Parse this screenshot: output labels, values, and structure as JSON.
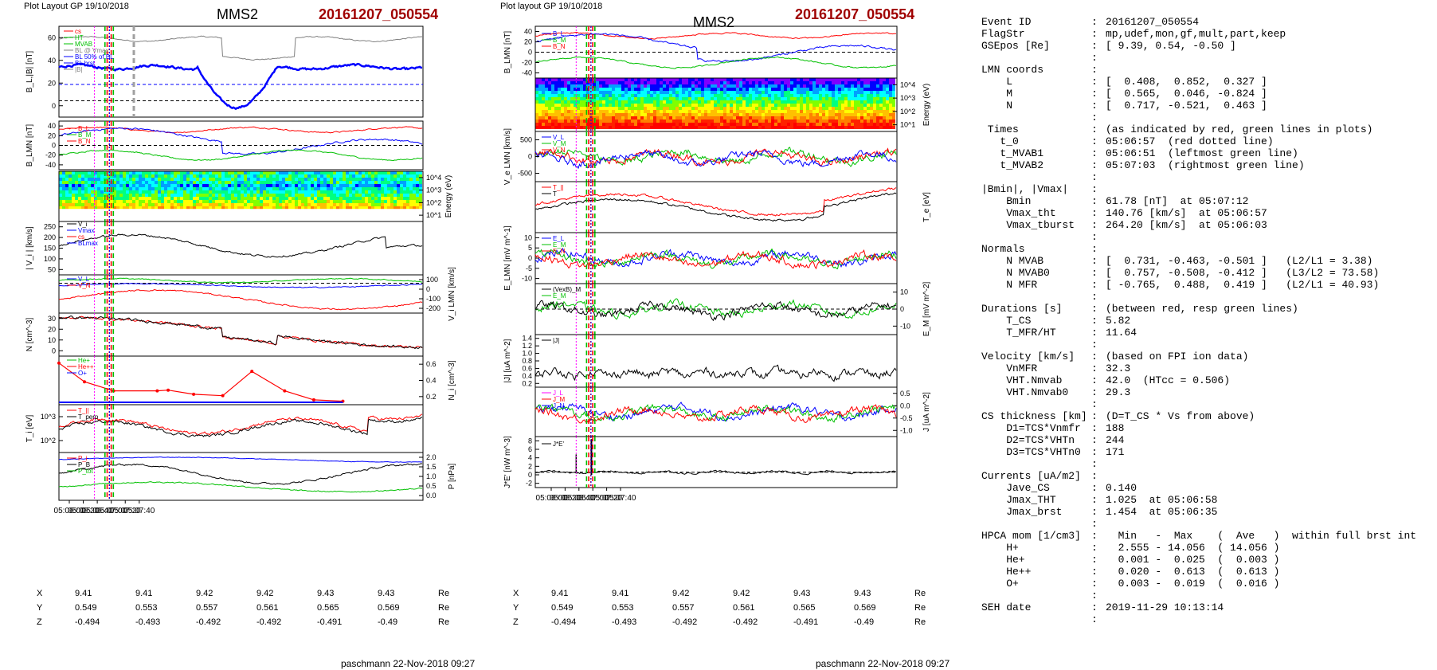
{
  "left_header": {
    "plot_layout": "Plot Layout GP 19/10/2018",
    "spacecraft": "MMS2",
    "event": "20161207_050554"
  },
  "mid_header": {
    "plot_layout": "Plot layout GP 19/10/2018",
    "spacecraft": "MMS2",
    "event": "20161207_050554"
  },
  "footer": "paschmann 22-Nov-2018 09:27",
  "time_ticks": [
    "05:06:00",
    "05:06:20",
    "05:06:40",
    "05:07:00",
    "05:07:20",
    "05:07:40"
  ],
  "position_table": {
    "X": [
      "9.41",
      "9.41",
      "9.42",
      "9.42",
      "9.43",
      "9.43"
    ],
    "Y": [
      "0.549",
      "0.553",
      "0.557",
      "0.561",
      "0.565",
      "0.569"
    ],
    "Z": [
      "-0.494",
      "-0.493",
      "-0.492",
      "-0.492",
      "-0.491",
      "-0.49"
    ],
    "unit": "Re"
  },
  "colors": {
    "red": "#ff0000",
    "green": "#00c000",
    "blue": "#0000ff",
    "magenta": "#ff00ff",
    "darkred": "#a00000"
  },
  "chart_data": [
    {
      "type": "line",
      "id": "L1",
      "ylabel": "B_L,|B| [nT]",
      "yticks": [
        "60",
        "40",
        "20",
        "0"
      ],
      "legend": [
        "cs",
        "HT",
        "MVAB",
        "BL @ Vmax",
        "BL 50% of BL",
        "BL brst",
        "|B|"
      ]
    },
    {
      "type": "line",
      "id": "L2",
      "ylabel": "B_LMN [nT]",
      "yticks": [
        "40",
        "20",
        "0",
        "-20",
        "-40"
      ],
      "legend": [
        "B_L",
        "B_M",
        "B_N"
      ]
    },
    {
      "type": "heatmap",
      "id": "L3",
      "ylabel_right": "Energy (eV)",
      "yticks_right": [
        "10^4",
        "10^3",
        "10^2",
        "10^1"
      ]
    },
    {
      "type": "line",
      "id": "L4",
      "ylabel": "| V_i | [km/s]",
      "yticks": [
        "250",
        "200",
        "150",
        "100",
        "50"
      ],
      "legend": [
        "V_i",
        "Vmax",
        "cs",
        "BLmax"
      ]
    },
    {
      "type": "line",
      "id": "L5",
      "ylabel_right": "V_i LMN [km/s]",
      "yticks_right": [
        "100",
        "0",
        "-100",
        "-200"
      ],
      "legend": [
        "V_L",
        "V_M",
        "V_N"
      ]
    },
    {
      "type": "line",
      "id": "L6",
      "ylabel": "N [cm^-3]",
      "yticks": [
        "30",
        "20",
        "10",
        "0"
      ]
    },
    {
      "type": "line",
      "id": "L7",
      "ylabel_right": "N_i [cm^-3]",
      "yticks_right": [
        "0.6",
        "0.4",
        "0.2"
      ],
      "legend": [
        "He+",
        "He++",
        "O+"
      ],
      "series": [
        {
          "name": "He++",
          "values": [
            0.6,
            0.33,
            0.2,
            0.2,
            0.21,
            0.15,
            0.13,
            0.48,
            0.2,
            0.07,
            0.05
          ]
        }
      ]
    },
    {
      "type": "line",
      "id": "L8",
      "ylabel": "T_i [eV]",
      "yticks": [
        "10^3",
        "10^2"
      ],
      "legend": [
        "T_||",
        "T_perp"
      ]
    },
    {
      "type": "line",
      "id": "L9",
      "ylabel_right": "P [nPa]",
      "yticks_right": [
        "2.0",
        "1.5",
        "1.0",
        "0.5",
        "0.0"
      ],
      "legend": [
        "P_i",
        "P_B",
        "P_tot"
      ]
    },
    {
      "type": "line",
      "id": "M1",
      "ylabel": "B_LMN [nT]",
      "yticks": [
        "40",
        "20",
        "0",
        "-20",
        "-40"
      ],
      "legend": [
        "B_L",
        "B_M",
        "B_N"
      ]
    },
    {
      "type": "heatmap",
      "id": "M2",
      "ylabel_right": "Energy (eV)",
      "yticks_right": [
        "10^4",
        "10^3",
        "10^2",
        "10^1"
      ]
    },
    {
      "type": "line",
      "id": "M3",
      "ylabel": "V_e LMN [km/s]",
      "yticks": [
        "500",
        "0",
        "-500"
      ],
      "legend": [
        "V_L",
        "V_M",
        "V_N"
      ]
    },
    {
      "type": "line",
      "id": "M4",
      "ylabel_right": "T_e [eV]",
      "legend": [
        "T_||",
        "T"
      ]
    },
    {
      "type": "line",
      "id": "M5",
      "ylabel": "E_LMN [mV m^-1]",
      "yticks": [
        "10",
        "5",
        "0",
        "-5",
        "-10"
      ],
      "legend": [
        "E_L",
        "E_M",
        "E_N"
      ]
    },
    {
      "type": "line",
      "id": "M6",
      "ylabel_right": "E_M [mV m^-2]",
      "yticks_right": [
        "10",
        "0",
        "-10"
      ],
      "legend": [
        "(VexB)_M",
        "E_M"
      ]
    },
    {
      "type": "line",
      "id": "M7",
      "ylabel": "|J| [uA m^-2]",
      "yticks": [
        "1.4",
        "1.2",
        "1.0",
        "0.8",
        "0.6",
        "0.4",
        "0.2"
      ],
      "legend": [
        "|J|"
      ]
    },
    {
      "type": "line",
      "id": "M8",
      "ylabel_right": "J [uA m^-2]",
      "yticks_right": [
        "0.5",
        "0.0",
        "-0.5",
        "-1.0"
      ],
      "legend": [
        "J_L",
        "J_M",
        "J_N"
      ]
    },
    {
      "type": "line",
      "id": "M9",
      "ylabel": "J*E' [nW m^-3]",
      "yticks": [
        "8",
        "6",
        "4",
        "2",
        "0",
        "-2"
      ],
      "legend": [
        "J*E'"
      ]
    }
  ],
  "info": {
    "rows": [
      {
        "k": "Event ID",
        "v": "20161207_050554"
      },
      {
        "k": "FlagStr",
        "v": "mp,udef,mon,gf,mult,part,keep"
      },
      {
        "k": "GSEpos [Re]",
        "v": "[ 9.39, 0.54, -0.50 ]"
      },
      {
        "k": "",
        "v": ""
      },
      {
        "k": "LMN coords",
        "v": ""
      },
      {
        "k": "    L",
        "v": "[  0.408,  0.852,  0.327 ]"
      },
      {
        "k": "    M",
        "v": "[  0.565,  0.046, -0.824 ]"
      },
      {
        "k": "    N",
        "v": "[  0.717, -0.521,  0.463 ]"
      },
      {
        "k": "",
        "v": ""
      },
      {
        "k": " Times",
        "v": "(as indicated by red, green lines in plots)"
      },
      {
        "k": "   t_0",
        "v": "05:06:57  (red dotted line)"
      },
      {
        "k": "   t_MVAB1",
        "v": "05:06:51  (leftmost green line)"
      },
      {
        "k": "   t_MVAB2",
        "v": "05:07:03  (rightmost green line)"
      },
      {
        "k": "",
        "v": ""
      },
      {
        "k": "|Bmin|, |Vmax|",
        "v": ""
      },
      {
        "k": "    Bmin",
        "v": "61.78 [nT]  at 05:07:12"
      },
      {
        "k": "    Vmax_tht",
        "v": "140.76 [km/s]  at 05:06:57"
      },
      {
        "k": "    Vmax_tburst",
        "v": "264.20 [km/s]  at 05:06:03"
      },
      {
        "k": "",
        "v": ""
      },
      {
        "k": "Normals",
        "v": ""
      },
      {
        "k": "    N MVAB",
        "v": "[  0.731, -0.463, -0.501 ]   (L2/L1 = 3.38)"
      },
      {
        "k": "    N MVAB0",
        "v": "[  0.757, -0.508, -0.412 ]   (L3/L2 = 73.58)"
      },
      {
        "k": "    N MFR",
        "v": "[ -0.765,  0.488,  0.419 ]   (L2/L1 = 40.93)"
      },
      {
        "k": "",
        "v": ""
      },
      {
        "k": "Durations [s]",
        "v": "(between red, resp green lines)"
      },
      {
        "k": "    T_CS",
        "v": "5.82"
      },
      {
        "k": "    T_MFR/HT",
        "v": "11.64"
      },
      {
        "k": "",
        "v": ""
      },
      {
        "k": "Velocity [km/s]",
        "v": "(based on FPI ion data)"
      },
      {
        "k": "    VnMFR",
        "v": "32.3"
      },
      {
        "k": "    VHT.Nmvab",
        "v": "42.0  (HTcc = 0.506)"
      },
      {
        "k": "    VHT.Nmvab0",
        "v": "29.3"
      },
      {
        "k": "",
        "v": ""
      },
      {
        "k": "CS thickness [km]",
        "v": "(D=T_CS * Vs from above)"
      },
      {
        "k": "    D1=TCS*Vnmfr",
        "v": "188"
      },
      {
        "k": "    D2=TCS*VHTn",
        "v": "244"
      },
      {
        "k": "    D3=TCS*VHTn0",
        "v": "171"
      },
      {
        "k": "",
        "v": ""
      },
      {
        "k": "Currents [uA/m2]",
        "v": ""
      },
      {
        "k": "    Jave_CS",
        "v": "0.140"
      },
      {
        "k": "    Jmax_THT",
        "v": "1.025  at 05:06:58"
      },
      {
        "k": "    Jmax_brst",
        "v": "1.454  at 05:06:35"
      },
      {
        "k": "",
        "v": ""
      },
      {
        "k": "HPCA mom [1/cm3]",
        "v": "  Min   -  Max    (  Ave   )  within full brst int"
      },
      {
        "k": "    H+",
        "v": "  2.555 - 14.056  ( 14.056 )"
      },
      {
        "k": "    He+",
        "v": "  0.001 -  0.025  (  0.003 )"
      },
      {
        "k": "    He++",
        "v": "  0.020 -  0.613  (  0.613 )"
      },
      {
        "k": "    O+",
        "v": "  0.003 -  0.019  (  0.016 )"
      },
      {
        "k": "",
        "v": ""
      },
      {
        "k": "SEH date",
        "v": "2019-11-29 10:13:14"
      },
      {
        "k": "",
        "v": ""
      }
    ]
  }
}
